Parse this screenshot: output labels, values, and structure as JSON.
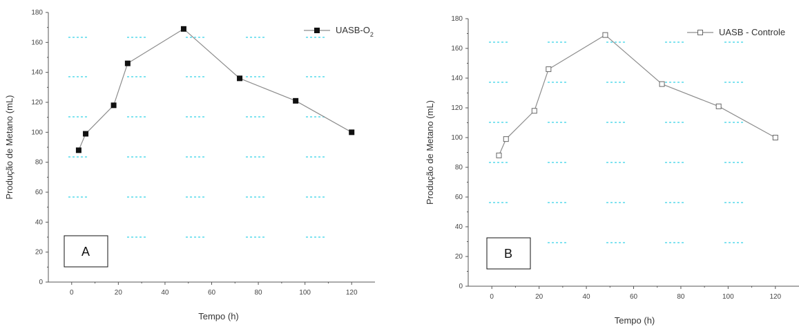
{
  "chart_data": [
    {
      "panel": "A",
      "type": "line",
      "xlabel": "Tempo (h)",
      "ylabel": "Produção de Metano (mL)",
      "xlim": [
        -10,
        130
      ],
      "ylim": [
        0,
        180
      ],
      "xticks": [
        "0",
        "20",
        "40",
        "60",
        "80",
        "100",
        "120"
      ],
      "yticks": [
        "0",
        "20",
        "40",
        "60",
        "80",
        "100",
        "120",
        "140",
        "160",
        "180"
      ],
      "legend_position": "top-right",
      "marker": "filled-square",
      "series": [
        {
          "name": "UASB-O",
          "name_subscript": "2",
          "x": [
            3,
            6,
            18,
            24,
            48,
            72,
            96,
            120
          ],
          "y": [
            88,
            99,
            118,
            146,
            169,
            136,
            121,
            100
          ]
        }
      ]
    },
    {
      "panel": "B",
      "type": "line",
      "xlabel": "Tempo (h)",
      "ylabel": "Produção de Metano (mL)",
      "xlim": [
        -10,
        130
      ],
      "ylim": [
        0,
        180
      ],
      "xticks": [
        "0",
        "20",
        "40",
        "60",
        "80",
        "100",
        "120"
      ],
      "yticks": [
        "0",
        "20",
        "40",
        "60",
        "80",
        "100",
        "120",
        "140",
        "160",
        "180"
      ],
      "legend_position": "top-right",
      "marker": "open-square",
      "series": [
        {
          "name": "UASB - Controle",
          "x": [
            3,
            6,
            18,
            24,
            48,
            72,
            96,
            120
          ],
          "y": [
            88,
            99,
            118,
            146,
            169,
            136,
            121,
            100
          ]
        }
      ]
    }
  ],
  "colors": {
    "line": "#8c8c8c",
    "marker": "#111111",
    "grid_dots": "#7fe3f0",
    "axis": "#555555"
  }
}
